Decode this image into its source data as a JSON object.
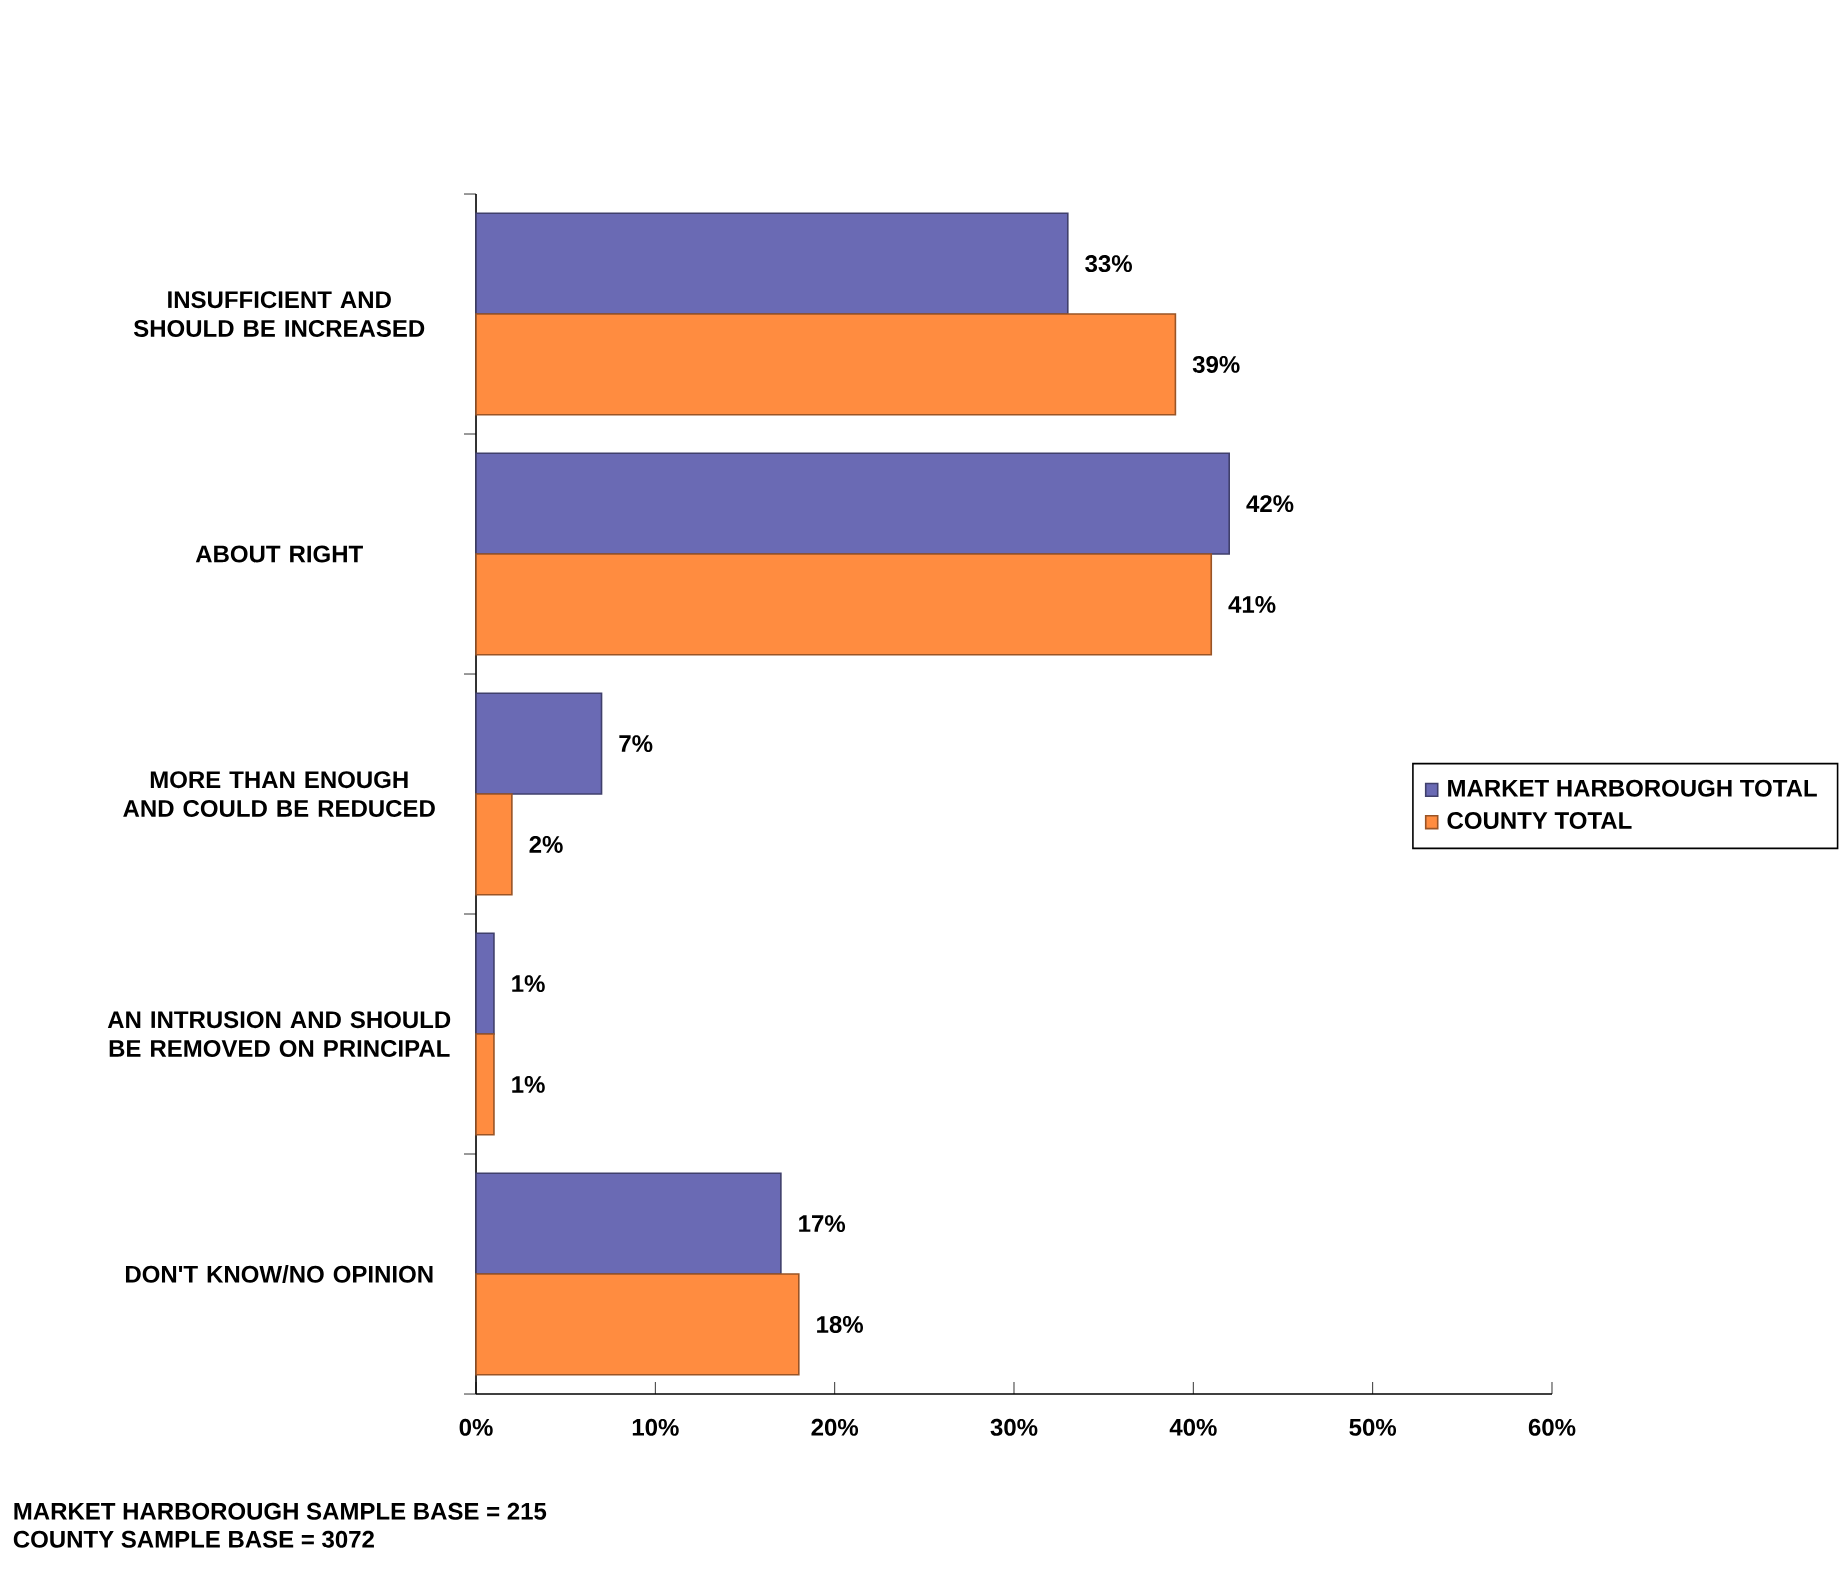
{
  "chart_data": {
    "type": "bar",
    "orientation": "horizontal",
    "categories": [
      "INSUFFICIENT AND SHOULD BE INCREASED",
      "ABOUT RIGHT",
      "MORE THAN ENOUGH AND COULD BE REDUCED",
      "AN INTRUSION AND SHOULD BE REMOVED ON PRINCIPAL",
      "DON'T KNOW/NO OPINION"
    ],
    "series": [
      {
        "name": "MARKET HARBOROUGH TOTAL",
        "color": "#6a6ab4",
        "values": [
          33,
          42,
          7,
          1,
          17
        ],
        "value_labels": [
          "33%",
          "42%",
          "7%",
          "1%",
          "17%"
        ]
      },
      {
        "name": "COUNTY TOTAL",
        "color": "#ff8c40",
        "values": [
          39,
          41,
          2,
          1,
          18
        ],
        "value_labels": [
          "39%",
          "41%",
          "2%",
          "1%",
          "18%"
        ]
      }
    ],
    "xlim": [
      0,
      60
    ],
    "xticks": [
      {
        "value": 0,
        "label": "0%"
      },
      {
        "value": 10,
        "label": "10%"
      },
      {
        "value": 20,
        "label": "20%"
      },
      {
        "value": 30,
        "label": "30%"
      },
      {
        "value": 40,
        "label": "40%"
      },
      {
        "value": 50,
        "label": "50%"
      },
      {
        "value": 60,
        "label": "60%"
      }
    ],
    "legend": "right",
    "grid": false,
    "annotations": [
      "MARKET HARBOROUGH SAMPLE BASE = 215",
      "COUNTY SAMPLE BASE = 3072"
    ]
  }
}
